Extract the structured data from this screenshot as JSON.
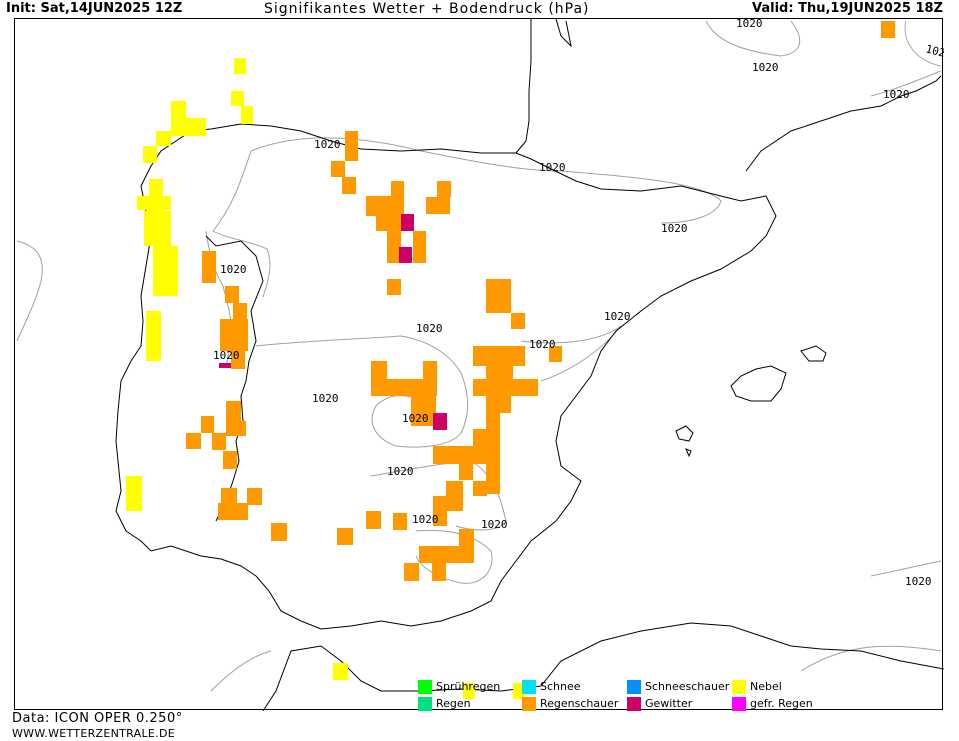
{
  "header": {
    "init": "Init: Sat,14JUN2025 12Z",
    "title": "Signifikantes Wetter +  Bodendruck (hPa)",
    "valid": "Valid: Thu,19JUN2025 18Z"
  },
  "footer": {
    "data_source": "Data: ICON OPER 0.250°",
    "website": "WWW.WETTERZENTRALE.DE"
  },
  "isobar_label": "1020",
  "isobar_label_partial": "102",
  "legend": [
    {
      "label": "Sprühregen",
      "color": "#00ff00"
    },
    {
      "label": "Schnee",
      "color": "#00e0f0"
    },
    {
      "label": "Schneeschauer",
      "color": "#0090ff"
    },
    {
      "label": "Nebel",
      "color": "#ffff00"
    },
    {
      "label": "Regen",
      "color": "#00e080"
    },
    {
      "label": "Regenschauer",
      "color": "#ff9900"
    },
    {
      "label": "Gewitter",
      "color": "#cc0066"
    },
    {
      "label": "gefr. Regen",
      "color": "#ff00ff"
    }
  ],
  "colors": {
    "coastline": "#000000",
    "isobar": "#a0a0a0",
    "nebel": "#ffff00",
    "regenschauer": "#ff9900",
    "gewitter": "#cc0066"
  }
}
